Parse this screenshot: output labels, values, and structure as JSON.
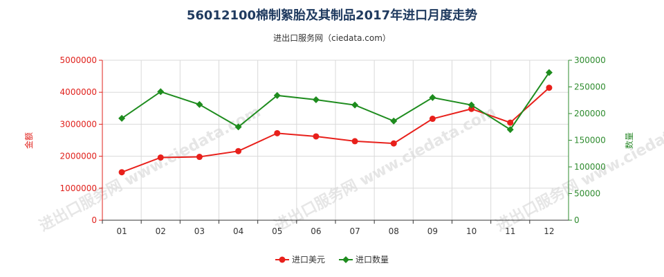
{
  "chart_data": {
    "type": "line",
    "title": "56012100棉制絮胎及其制品2017年进口月度走势",
    "subtitle": "进出口服务网（ciedata.com）",
    "watermark": "进出口服务网 www.ciedata.com",
    "categories": [
      "01",
      "02",
      "03",
      "04",
      "05",
      "06",
      "07",
      "08",
      "09",
      "10",
      "11",
      "12"
    ],
    "y_left": {
      "label": "金额",
      "min": 0,
      "max": 5000000,
      "ticks": [
        "0",
        "1000000",
        "2000000",
        "3000000",
        "4000000",
        "5000000"
      ],
      "tick_values": [
        0,
        1000000,
        2000000,
        3000000,
        4000000,
        5000000
      ],
      "color": "#e0201b"
    },
    "y_right": {
      "label": "数量",
      "min": 0,
      "max": 300000,
      "ticks": [
        "0",
        "50000",
        "100000",
        "150000",
        "200000",
        "250000",
        "300000"
      ],
      "tick_values": [
        0,
        50000,
        100000,
        150000,
        200000,
        250000,
        300000
      ],
      "color": "#2e8b2e"
    },
    "grid": true,
    "legend_position": "bottom-center",
    "series": [
      {
        "name": "进口美元",
        "axis": "left",
        "color": "#e8201b",
        "marker": "circle",
        "values": [
          1500000,
          1960000,
          1980000,
          2160000,
          2720000,
          2620000,
          2470000,
          2400000,
          3170000,
          3480000,
          3050000,
          4140000
        ]
      },
      {
        "name": "进口数量",
        "axis": "right",
        "color": "#1e8c1e",
        "marker": "diamond",
        "values": [
          191000,
          241000,
          217000,
          175000,
          234000,
          226000,
          216000,
          186000,
          230000,
          216000,
          170000,
          277000
        ]
      }
    ]
  }
}
